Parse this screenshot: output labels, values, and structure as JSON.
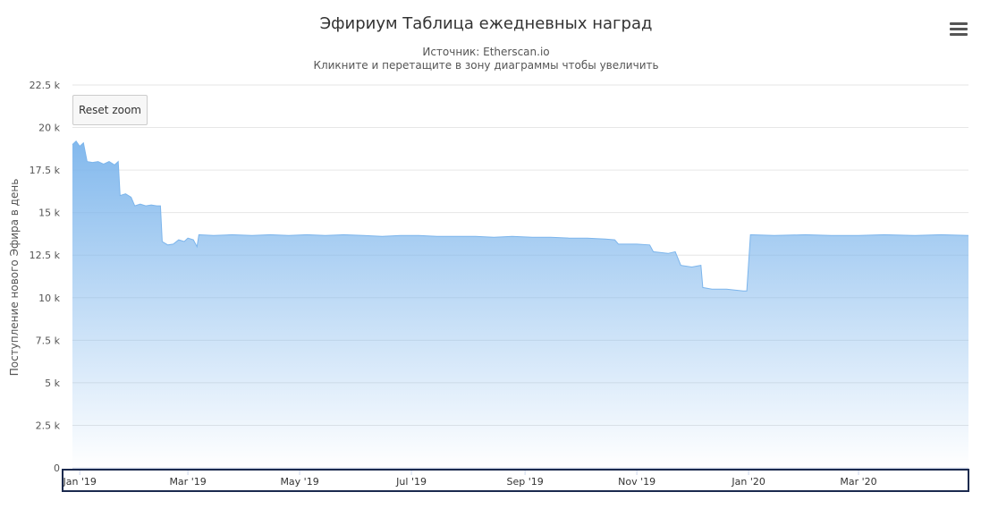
{
  "chart_data": {
    "type": "area",
    "title": "Эфириум Таблица ежедневных наград",
    "subtitle_source": "Источник: Etherscan.io",
    "subtitle_hint": "Кликните и перетащите в зону диаграммы чтобы увеличить",
    "ylabel": "Поступление нового Эфира в день",
    "xlabel": "",
    "ylim": [
      0,
      22500
    ],
    "y_ticks": [
      0,
      2500,
      5000,
      7500,
      10000,
      12500,
      15000,
      17500,
      20000,
      22500
    ],
    "y_tick_labels": [
      "0",
      "2.5 k",
      "5 k",
      "7.5 k",
      "10 k",
      "12.5 k",
      "15 k",
      "17.5 k",
      "20 k",
      "22.5 k"
    ],
    "xlim": [
      "2018-12-28",
      "2020-04-30"
    ],
    "x_tick_labels": [
      {
        "date": "2019-01-01",
        "label": "Jan '19"
      },
      {
        "date": "2019-03-01",
        "label": "Mar '19"
      },
      {
        "date": "2019-05-01",
        "label": "May '19"
      },
      {
        "date": "2019-07-01",
        "label": "Jul '19"
      },
      {
        "date": "2019-09-01",
        "label": "Sep '19"
      },
      {
        "date": "2019-11-01",
        "label": "Nov '19"
      },
      {
        "date": "2020-01-01",
        "label": "Jan '20"
      },
      {
        "date": "2020-03-01",
        "label": "Mar '20"
      }
    ],
    "grid": true,
    "color": "#7cb5ec",
    "series": [
      {
        "name": "",
        "points": [
          [
            "2018-12-28",
            19000
          ],
          [
            "2018-12-30",
            19200
          ],
          [
            "2019-01-01",
            18900
          ],
          [
            "2019-01-03",
            19100
          ],
          [
            "2019-01-05",
            18000
          ],
          [
            "2019-01-08",
            17950
          ],
          [
            "2019-01-11",
            18000
          ],
          [
            "2019-01-14",
            17850
          ],
          [
            "2019-01-17",
            18000
          ],
          [
            "2019-01-20",
            17800
          ],
          [
            "2019-01-22",
            18000
          ],
          [
            "2019-01-23",
            16000
          ],
          [
            "2019-01-26",
            16100
          ],
          [
            "2019-01-29",
            15900
          ],
          [
            "2019-01-31",
            15400
          ],
          [
            "2019-02-03",
            15500
          ],
          [
            "2019-02-06",
            15400
          ],
          [
            "2019-02-09",
            15450
          ],
          [
            "2019-02-12",
            15400
          ],
          [
            "2019-02-14",
            15400
          ],
          [
            "2019-02-15",
            13300
          ],
          [
            "2019-02-18",
            13100
          ],
          [
            "2019-02-21",
            13150
          ],
          [
            "2019-02-24",
            13400
          ],
          [
            "2019-02-27",
            13300
          ],
          [
            "2019-03-01",
            13500
          ],
          [
            "2019-03-04",
            13400
          ],
          [
            "2019-03-06",
            13000
          ],
          [
            "2019-03-07",
            13700
          ],
          [
            "2019-03-15",
            13650
          ],
          [
            "2019-03-25",
            13700
          ],
          [
            "2019-04-05",
            13650
          ],
          [
            "2019-04-15",
            13700
          ],
          [
            "2019-04-25",
            13650
          ],
          [
            "2019-05-05",
            13700
          ],
          [
            "2019-05-15",
            13650
          ],
          [
            "2019-05-25",
            13700
          ],
          [
            "2019-06-05",
            13650
          ],
          [
            "2019-06-15",
            13600
          ],
          [
            "2019-06-25",
            13650
          ],
          [
            "2019-07-05",
            13650
          ],
          [
            "2019-07-15",
            13600
          ],
          [
            "2019-07-25",
            13600
          ],
          [
            "2019-08-05",
            13600
          ],
          [
            "2019-08-15",
            13550
          ],
          [
            "2019-08-25",
            13600
          ],
          [
            "2019-09-05",
            13550
          ],
          [
            "2019-09-15",
            13550
          ],
          [
            "2019-09-25",
            13500
          ],
          [
            "2019-10-05",
            13500
          ],
          [
            "2019-10-15",
            13450
          ],
          [
            "2019-10-20",
            13400
          ],
          [
            "2019-10-22",
            13150
          ],
          [
            "2019-11-01",
            13150
          ],
          [
            "2019-11-08",
            13100
          ],
          [
            "2019-11-10",
            12700
          ],
          [
            "2019-11-18",
            12600
          ],
          [
            "2019-11-22",
            12700
          ],
          [
            "2019-11-25",
            11900
          ],
          [
            "2019-12-01",
            11800
          ],
          [
            "2019-12-06",
            11900
          ],
          [
            "2019-12-07",
            10600
          ],
          [
            "2019-12-12",
            10500
          ],
          [
            "2019-12-20",
            10500
          ],
          [
            "2019-12-29",
            10400
          ],
          [
            "2019-12-31",
            10400
          ],
          [
            "2020-01-02",
            13700
          ],
          [
            "2020-01-15",
            13650
          ],
          [
            "2020-02-01",
            13700
          ],
          [
            "2020-02-15",
            13650
          ],
          [
            "2020-03-01",
            13650
          ],
          [
            "2020-03-15",
            13700
          ],
          [
            "2020-04-01",
            13650
          ],
          [
            "2020-04-15",
            13700
          ],
          [
            "2020-04-30",
            13650
          ]
        ]
      }
    ]
  },
  "ui": {
    "reset_zoom_label": "Reset zoom",
    "menu_icon": "hamburger-menu-icon"
  }
}
